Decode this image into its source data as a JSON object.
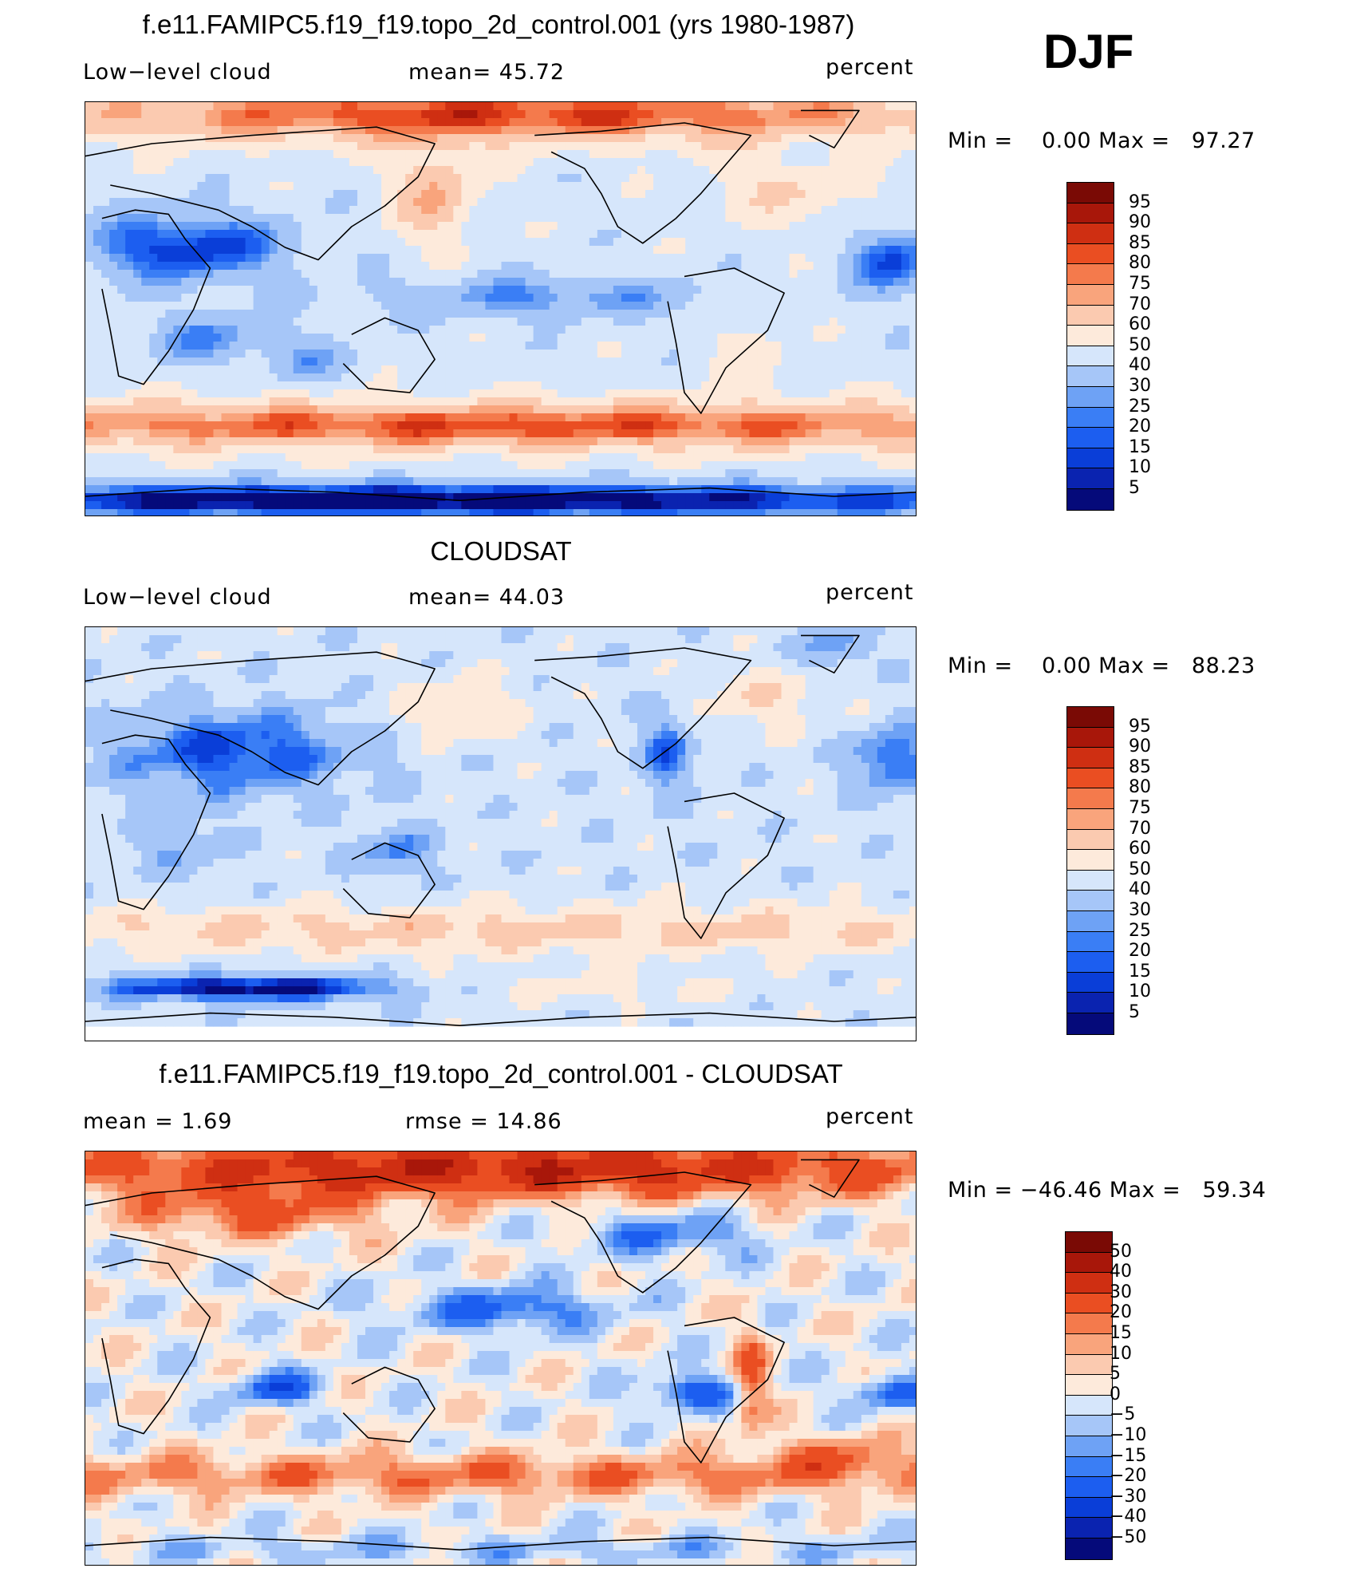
{
  "season": "DJF",
  "colors": {
    "scale_abs": [
      "#050a7a",
      "#0a23b0",
      "#0a3ed8",
      "#1c5ef0",
      "#3a7ef5",
      "#6ea2f5",
      "#a6c6f8",
      "#d6e6fb",
      "#fdeadb",
      "#fbcab0",
      "#f9a47c",
      "#f47a4c",
      "#ea4e22",
      "#cf2f12",
      "#a8170a",
      "#7a0a05"
    ],
    "scale_diff": [
      "#050a7a",
      "#0a23b0",
      "#0a3ed8",
      "#1c5ef0",
      "#3a7ef5",
      "#6ea2f5",
      "#a6c6f8",
      "#d6e6fb",
      "#fdeadb",
      "#fbcab0",
      "#f9a47c",
      "#f47a4c",
      "#ea4e22",
      "#cf2f12",
      "#a8170a",
      "#7a0a05"
    ],
    "coastline": "#000000"
  },
  "panels": [
    {
      "id": "model",
      "title": "f.e11.FAMIPC5.f19_f19.topo_2d_control.001 (yrs 1980-1987)",
      "left_label": "Low−level cloud",
      "center_label": "mean=   45.72",
      "right_label": "percent",
      "minmax": "Min =    0.00 Max =   97.27",
      "colorbar_ticks": [
        "95",
        "90",
        "85",
        "80",
        "75",
        "70",
        "60",
        "50",
        "40",
        "30",
        "25",
        "20",
        "15",
        "10",
        "5"
      ],
      "field": "model"
    },
    {
      "id": "obs",
      "title": "CLOUDSAT",
      "left_label": "Low−level cloud",
      "center_label": "mean=   44.03",
      "right_label": "percent",
      "minmax": "Min =    0.00 Max =   88.23",
      "colorbar_ticks": [
        "95",
        "90",
        "85",
        "80",
        "75",
        "70",
        "60",
        "50",
        "40",
        "30",
        "25",
        "20",
        "15",
        "10",
        "5"
      ],
      "field": "obs"
    },
    {
      "id": "diff",
      "title": "f.e11.FAMIPC5.f19_f19.topo_2d_control.001 - CLOUDSAT",
      "left_label": "mean =    1.69",
      "center_label": "rmse =   14.86",
      "right_label": "percent",
      "minmax": "Min = −46.46 Max =   59.34",
      "colorbar_ticks": [
        "50",
        "40",
        "30",
        "20",
        "15",
        "10",
        "5",
        "0",
        "−5",
        "−10",
        "−15",
        "−20",
        "−30",
        "−40",
        "−50"
      ],
      "field": "diff"
    }
  ]
}
